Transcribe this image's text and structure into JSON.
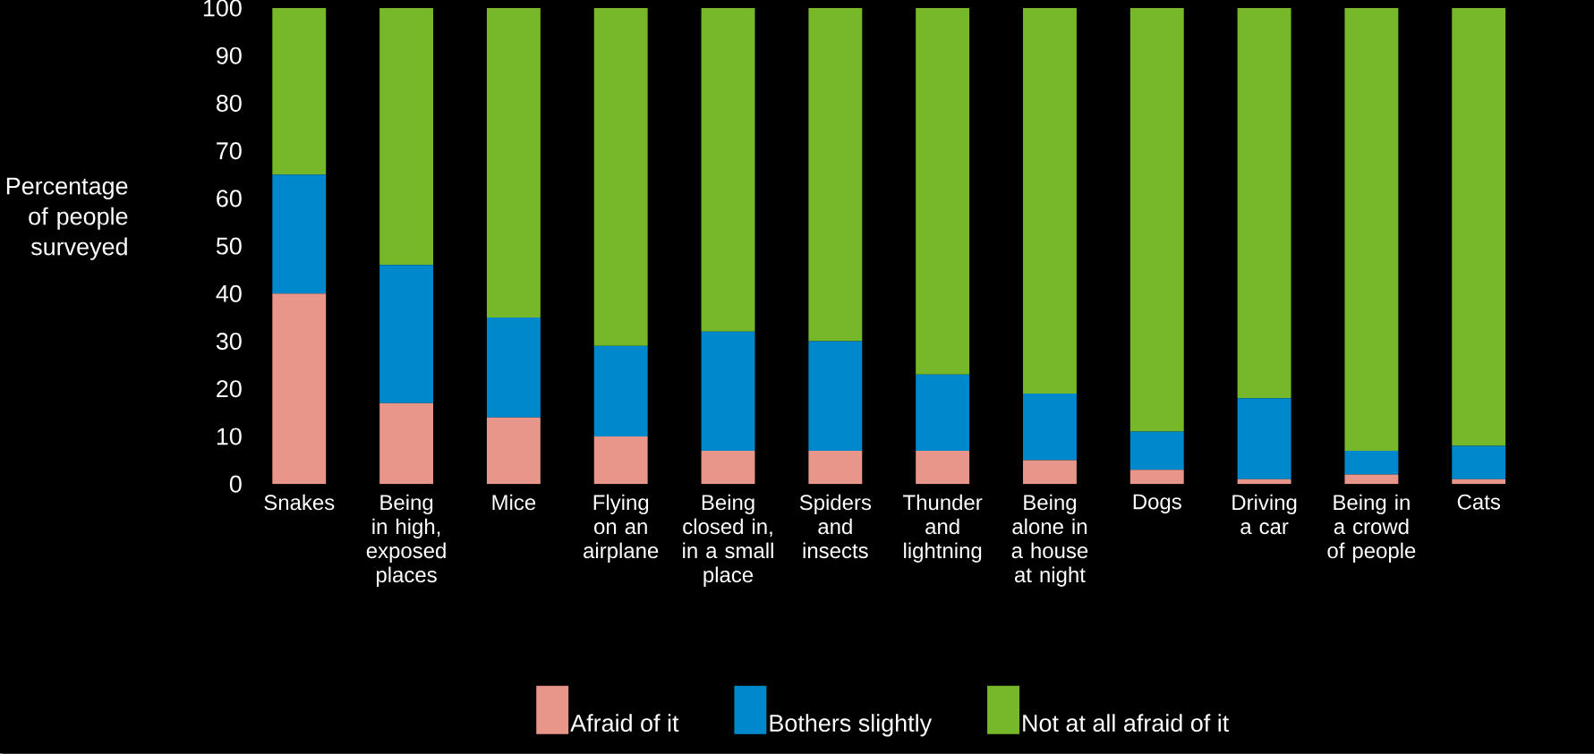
{
  "chart_data": {
    "type": "bar",
    "stacked": true,
    "ylabel": "Percentage of people surveyed",
    "categories": [
      "Snakes",
      "Being in high, exposed places",
      "Mice",
      "Flying on an airplane",
      "Being closed in, in a small place",
      "Spiders and insects",
      "Thunder and lightning",
      "Being alone in a house at night",
      "Dogs",
      "Driving a car",
      "Being in a crowd of people",
      "Cats"
    ],
    "series": [
      {
        "name": "Afraid of it",
        "color": "#e8958a",
        "values": [
          40,
          17,
          14,
          10,
          7,
          7,
          7,
          5,
          3,
          1,
          2,
          1
        ]
      },
      {
        "name": "Bothers slightly",
        "color": "#0088cc",
        "values": [
          25,
          29,
          21,
          19,
          25,
          23,
          16,
          14,
          8,
          17,
          5,
          7
        ]
      },
      {
        "name": "Not at all afraid of it",
        "color": "#77b82a",
        "values": [
          35,
          54,
          65,
          71,
          68,
          70,
          77,
          81,
          89,
          82,
          93,
          92
        ]
      }
    ],
    "ylim": [
      0,
      100
    ],
    "yticks": [
      0,
      10,
      20,
      30,
      40,
      50,
      60,
      70,
      80,
      90,
      100
    ],
    "grid": false,
    "legend": "bottom"
  }
}
